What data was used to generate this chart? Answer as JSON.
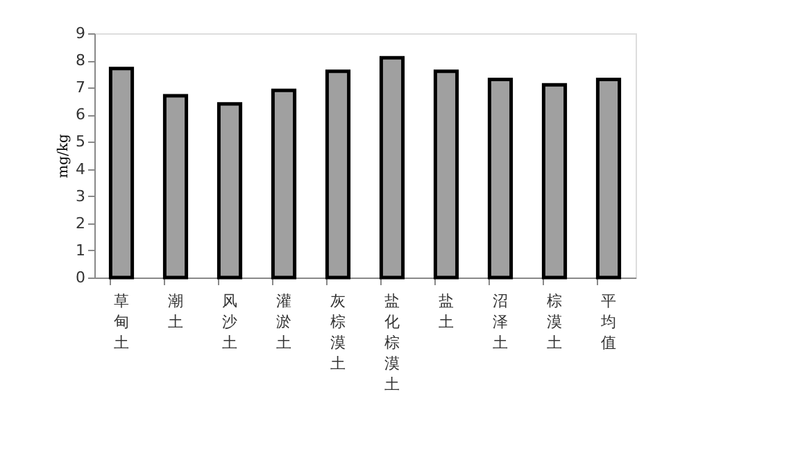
{
  "chart_data": {
    "type": "bar",
    "ylabel": "mg/kg",
    "categories": [
      "草甸土",
      "潮土",
      "风沙土",
      "灌淤土",
      "灰棕漠土",
      "盐化棕漠土",
      "盐土",
      "沼泽土",
      "棕漠土",
      "平均值"
    ],
    "values": [
      7.7,
      6.7,
      6.4,
      6.9,
      7.6,
      8.1,
      7.6,
      7.3,
      7.1,
      7.3
    ],
    "color": "#a0a0a0",
    "ylim": [
      0,
      9
    ],
    "yticks": [
      0,
      1,
      2,
      3,
      4,
      5,
      6,
      7,
      8,
      9
    ],
    "grid": false
  }
}
